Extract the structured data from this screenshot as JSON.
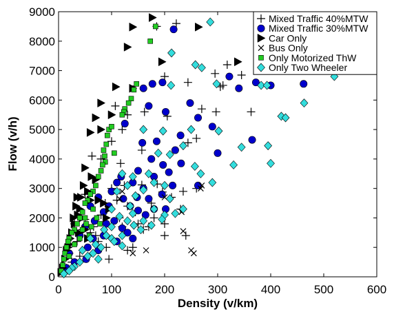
{
  "chart_data": {
    "type": "scatter",
    "xlabel": "Density (v/km)",
    "ylabel": "Flow (v/h)",
    "xlim": [
      0,
      600
    ],
    "ylim": [
      0,
      9000
    ],
    "xticks": [
      0,
      100,
      200,
      300,
      400,
      500,
      600
    ],
    "yticks": [
      0,
      1000,
      2000,
      3000,
      4000,
      5000,
      6000,
      7000,
      8000,
      9000
    ],
    "grid": false,
    "legend_position": "top-right",
    "series": [
      {
        "name": "Mixed Traffic 40%MTW",
        "marker": "plus",
        "color": "#000000",
        "points": [
          [
            222,
            8600
          ],
          [
            185,
            8500
          ],
          [
            318,
            7200
          ],
          [
            295,
            6900
          ],
          [
            200,
            6800
          ],
          [
            244,
            6600
          ],
          [
            144,
            6480
          ],
          [
            305,
            6450
          ],
          [
            310,
            6500
          ],
          [
            345,
            6850
          ],
          [
            107,
            5800
          ],
          [
            130,
            5500
          ],
          [
            162,
            5600
          ],
          [
            205,
            5450
          ],
          [
            270,
            5700
          ],
          [
            297,
            5600
          ],
          [
            363,
            5600
          ],
          [
            120,
            5000
          ],
          [
            260,
            4700
          ],
          [
            100,
            4600
          ],
          [
            63,
            4100
          ],
          [
            80,
            4000
          ],
          [
            117,
            3850
          ],
          [
            157,
            4300
          ],
          [
            244,
            4550
          ],
          [
            100,
            3000
          ],
          [
            124,
            3100
          ],
          [
            157,
            3120
          ],
          [
            186,
            3150
          ],
          [
            196,
            2880
          ],
          [
            213,
            2700
          ],
          [
            260,
            3000
          ],
          [
            30,
            1800
          ],
          [
            50,
            1950
          ],
          [
            60,
            1500
          ],
          [
            75,
            1200
          ],
          [
            90,
            1000
          ],
          [
            130,
            900
          ],
          [
            160,
            1600
          ],
          [
            200,
            1400
          ],
          [
            40,
            700
          ],
          [
            25,
            500
          ],
          [
            15,
            300
          ],
          [
            70,
            1400
          ],
          [
            95,
            600
          ],
          [
            140,
            1000
          ],
          [
            180,
            2000
          ],
          [
            230,
            2300
          ],
          [
            50,
            2800
          ],
          [
            88,
            2500
          ],
          [
            66,
            1700
          ],
          [
            115,
            2000
          ],
          [
            170,
            1700
          ],
          [
            150,
            1800
          ],
          [
            130,
            2400
          ],
          [
            20,
            800
          ],
          [
            35,
            1200
          ],
          [
            45,
            1600
          ],
          [
            80,
            2100
          ],
          [
            110,
            2600
          ],
          [
            120,
            1700
          ],
          [
            145,
            2200
          ],
          [
            175,
            2500
          ],
          [
            200,
            1800
          ],
          [
            235,
            2900
          ],
          [
            240,
            1400
          ]
        ]
      },
      {
        "name": "Mixed Traffic 30%MTW",
        "marker": "circle",
        "color": "#0000cc",
        "points": [
          [
            217,
            8400
          ],
          [
            322,
            6800
          ],
          [
            340,
            6400
          ],
          [
            372,
            6600
          ],
          [
            400,
            6500
          ],
          [
            462,
            6550
          ],
          [
            160,
            6400
          ],
          [
            177,
            6550
          ],
          [
            196,
            6600
          ],
          [
            170,
            5800
          ],
          [
            202,
            5600
          ],
          [
            248,
            5900
          ],
          [
            263,
            5400
          ],
          [
            290,
            5100
          ],
          [
            300,
            4200
          ],
          [
            365,
            4650
          ],
          [
            125,
            5200
          ],
          [
            230,
            4800
          ],
          [
            185,
            4600
          ],
          [
            158,
            4550
          ],
          [
            220,
            4300
          ],
          [
            175,
            4000
          ],
          [
            197,
            3800
          ],
          [
            231,
            3850
          ],
          [
            208,
            3550
          ],
          [
            263,
            3100
          ],
          [
            118,
            3400
          ],
          [
            140,
            3200
          ],
          [
            150,
            3600
          ],
          [
            160,
            3000
          ],
          [
            180,
            3400
          ],
          [
            100,
            2900
          ],
          [
            122,
            2650
          ],
          [
            135,
            2400
          ],
          [
            150,
            2250
          ],
          [
            164,
            2100
          ],
          [
            170,
            2650
          ],
          [
            202,
            2300
          ],
          [
            60,
            2400
          ],
          [
            75,
            2700
          ],
          [
            85,
            2200
          ],
          [
            90,
            1800
          ],
          [
            105,
            1900
          ],
          [
            120,
            1650
          ],
          [
            130,
            1500
          ],
          [
            40,
            1400
          ],
          [
            55,
            1000
          ],
          [
            65,
            1300
          ],
          [
            75,
            900
          ],
          [
            52,
            600
          ],
          [
            30,
            500
          ],
          [
            20,
            800
          ],
          [
            15,
            300
          ],
          [
            50,
            1700
          ],
          [
            85,
            1400
          ],
          [
            110,
            1200
          ],
          [
            148,
            2700
          ],
          [
            180,
            2300
          ],
          [
            195,
            2800
          ],
          [
            215,
            3100
          ],
          [
            68,
            1900
          ],
          [
            95,
            2400
          ],
          [
            140,
            1300
          ],
          [
            110,
            3200
          ]
        ]
      },
      {
        "name": "Car Only",
        "marker": "triangle-right",
        "color": "#000000",
        "points": [
          [
            140,
            8480
          ],
          [
            264,
            8480
          ],
          [
            130,
            7800
          ],
          [
            177,
            8800
          ],
          [
            195,
            7300
          ],
          [
            338,
            7300
          ],
          [
            108,
            6450
          ],
          [
            140,
            6400
          ],
          [
            80,
            5900
          ],
          [
            70,
            5400
          ],
          [
            100,
            5500
          ],
          [
            60,
            4900
          ],
          [
            80,
            5000
          ],
          [
            50,
            3700
          ],
          [
            62,
            3400
          ],
          [
            55,
            2900
          ],
          [
            60,
            2600
          ],
          [
            42,
            2700
          ],
          [
            47,
            3100
          ],
          [
            33,
            2400
          ],
          [
            36,
            2100
          ],
          [
            30,
            1800
          ],
          [
            25,
            1500
          ],
          [
            22,
            1300
          ],
          [
            20,
            1100
          ],
          [
            15,
            900
          ],
          [
            12,
            600
          ],
          [
            8,
            300
          ],
          [
            5,
            150
          ],
          [
            35,
            2700
          ],
          [
            40,
            2300
          ],
          [
            28,
            2000
          ],
          [
            70,
            3300
          ],
          [
            75,
            2600
          ],
          [
            85,
            2500
          ],
          [
            90,
            2000
          ],
          [
            95,
            2300
          ],
          [
            45,
            2000
          ],
          [
            50,
            1600
          ],
          [
            55,
            1300
          ],
          [
            38,
            1500
          ],
          [
            18,
            1000
          ]
        ]
      },
      {
        "name": "Bus Only",
        "marker": "x",
        "color": "#000000",
        "points": [
          [
            268,
            3000
          ],
          [
            232,
            2200
          ],
          [
            235,
            1550
          ],
          [
            250,
            900
          ],
          [
            255,
            800
          ],
          [
            115,
            2650
          ],
          [
            120,
            2900
          ],
          [
            200,
            2700
          ],
          [
            270,
            3100
          ],
          [
            165,
            900
          ],
          [
            140,
            800
          ]
        ]
      },
      {
        "name": "Only Motorized ThW",
        "marker": "square",
        "color": "#22cc22",
        "points": [
          [
            183,
            8500
          ],
          [
            173,
            8000
          ],
          [
            147,
            6550
          ],
          [
            142,
            6350
          ],
          [
            137,
            6050
          ],
          [
            132,
            5900
          ],
          [
            125,
            5700
          ],
          [
            123,
            5600
          ],
          [
            120,
            5500
          ],
          [
            92,
            4800
          ],
          [
            95,
            5000
          ],
          [
            100,
            5100
          ],
          [
            85,
            4300
          ],
          [
            87,
            4100
          ],
          [
            88,
            3900
          ],
          [
            83,
            3800
          ],
          [
            80,
            3600
          ],
          [
            75,
            3400
          ],
          [
            70,
            3100
          ],
          [
            65,
            2900
          ],
          [
            60,
            2800
          ],
          [
            55,
            2600
          ],
          [
            50,
            2500
          ],
          [
            45,
            2200
          ],
          [
            40,
            2000
          ],
          [
            35,
            1800
          ],
          [
            30,
            1600
          ],
          [
            25,
            1500
          ],
          [
            20,
            1300
          ],
          [
            18,
            1200
          ],
          [
            15,
            1000
          ],
          [
            12,
            800
          ],
          [
            10,
            600
          ],
          [
            8,
            400
          ],
          [
            5,
            200
          ],
          [
            65,
            2300
          ],
          [
            72,
            2000
          ],
          [
            78,
            1800
          ],
          [
            52,
            1800
          ],
          [
            45,
            1600
          ],
          [
            58,
            1400
          ],
          [
            40,
            1300
          ],
          [
            30,
            1100
          ],
          [
            20,
            700
          ],
          [
            90,
            4500
          ],
          [
            105,
            4200
          ],
          [
            62,
            1700
          ],
          [
            50,
            2000
          ]
        ]
      },
      {
        "name": "Only Two Wheeler",
        "marker": "diamond",
        "color": "#33dddd",
        "points": [
          [
            286,
            8650
          ],
          [
            213,
            7600
          ],
          [
            258,
            7200
          ],
          [
            270,
            7100
          ],
          [
            212,
            6500
          ],
          [
            298,
            6550
          ],
          [
            382,
            6500
          ],
          [
            393,
            6500
          ],
          [
            463,
            5900
          ],
          [
            420,
            5450
          ],
          [
            428,
            5400
          ],
          [
            160,
            5000
          ],
          [
            250,
            5000
          ],
          [
            197,
            4950
          ],
          [
            302,
            4950
          ],
          [
            395,
            4450
          ],
          [
            345,
            4400
          ],
          [
            235,
            4450
          ],
          [
            210,
            4150
          ],
          [
            188,
            4200
          ],
          [
            400,
            3850
          ],
          [
            330,
            3800
          ],
          [
            257,
            3750
          ],
          [
            268,
            3500
          ],
          [
            290,
            3200
          ],
          [
            120,
            3500
          ],
          [
            140,
            3400
          ],
          [
            170,
            3500
          ],
          [
            180,
            3200
          ],
          [
            200,
            3100
          ],
          [
            160,
            2950
          ],
          [
            130,
            3100
          ],
          [
            110,
            2900
          ],
          [
            210,
            2650
          ],
          [
            145,
            2750
          ],
          [
            135,
            2400
          ],
          [
            180,
            2300
          ],
          [
            200,
            2100
          ],
          [
            220,
            2150
          ],
          [
            235,
            2300
          ],
          [
            100,
            2300
          ],
          [
            115,
            2050
          ],
          [
            130,
            1900
          ],
          [
            142,
            1750
          ],
          [
            160,
            1900
          ],
          [
            175,
            1750
          ],
          [
            140,
            2150
          ],
          [
            86,
            1600
          ],
          [
            90,
            1400
          ],
          [
            100,
            1300
          ],
          [
            105,
            1200
          ],
          [
            120,
            1050
          ],
          [
            60,
            1300
          ],
          [
            70,
            1100
          ],
          [
            80,
            1000
          ],
          [
            45,
            900
          ],
          [
            55,
            700
          ],
          [
            40,
            500
          ],
          [
            30,
            350
          ],
          [
            25,
            300
          ],
          [
            20,
            200
          ],
          [
            10,
            100
          ],
          [
            100,
            1700
          ],
          [
            155,
            1600
          ],
          [
            195,
            1950
          ],
          [
            120,
            1400
          ],
          [
            65,
            800
          ],
          [
            75,
            600
          ],
          [
            520,
            6800
          ]
        ]
      }
    ]
  }
}
